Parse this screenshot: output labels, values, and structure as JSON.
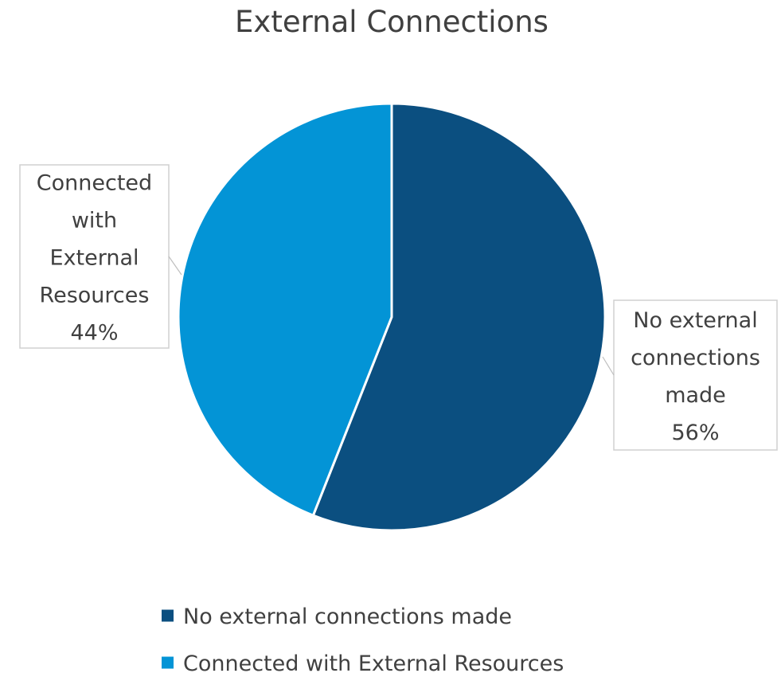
{
  "chart_data": {
    "type": "pie",
    "title": "External Connections",
    "series": [
      {
        "label": "No external connections made",
        "value": 56,
        "percent_label": "56%",
        "color": "#0b4f80",
        "callout_lines": [
          "No external",
          "connections",
          "made",
          "56%"
        ]
      },
      {
        "label": "Connected with External Resources",
        "value": 44,
        "percent_label": "44%",
        "color": "#0394d6",
        "callout_lines": [
          "Connected",
          "with",
          "External",
          "Resources",
          "44%"
        ]
      }
    ],
    "legend": {
      "position": "bottom",
      "items": [
        "No external connections made",
        "Connected with External Resources"
      ]
    },
    "start_angle_deg": 0,
    "direction": "clockwise"
  }
}
